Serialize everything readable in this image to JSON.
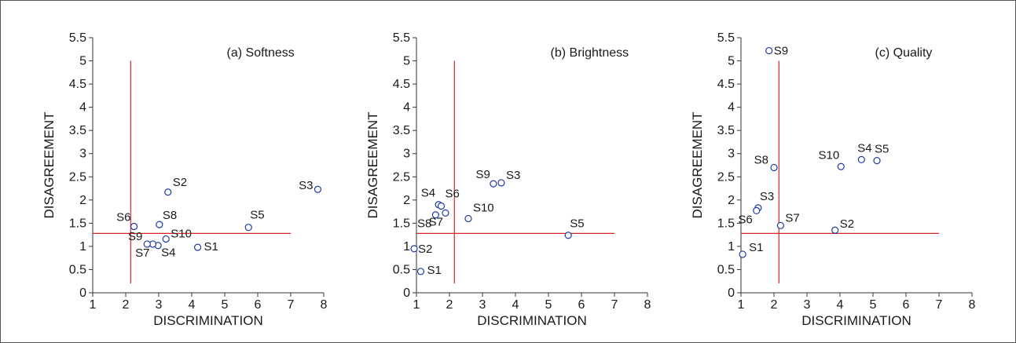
{
  "figure": {
    "frame": true
  },
  "colors": {
    "marker": "#1f3aa6",
    "reference_line": "#d62728",
    "axis": "#333333"
  },
  "chart_data": [
    {
      "type": "scatter",
      "title": "(a) Softness",
      "xlabel": "DISCRIMINATION",
      "ylabel": "DISAGREEMENT",
      "xlim": [
        1,
        8
      ],
      "ylim": [
        0,
        5.5
      ],
      "x_ticks": [
        "1",
        "2",
        "3",
        "4",
        "5",
        "6",
        "7",
        "8"
      ],
      "y_ticks": [
        "0",
        "0.5",
        "1",
        "1.5",
        "2",
        "2.5",
        "3",
        "3.5",
        "4",
        "4.5",
        "5",
        "5.5"
      ],
      "points": [
        {
          "label": "S1",
          "x": 4.18,
          "y": 0.98
        },
        {
          "label": "S2",
          "x": 3.28,
          "y": 2.17
        },
        {
          "label": "S3",
          "x": 7.82,
          "y": 2.23
        },
        {
          "label": "S4",
          "x": 2.98,
          "y": 1.02
        },
        {
          "label": "S5",
          "x": 5.72,
          "y": 1.41
        },
        {
          "label": "S6",
          "x": 2.25,
          "y": 1.43
        },
        {
          "label": "S7",
          "x": 2.82,
          "y": 1.05
        },
        {
          "label": "S8",
          "x": 3.02,
          "y": 1.47
        },
        {
          "label": "S9",
          "x": 2.65,
          "y": 1.05
        },
        {
          "label": "S10",
          "x": 3.22,
          "y": 1.16
        }
      ],
      "reference_lines": {
        "x": 2.15,
        "x_span": [
          0.2,
          5.0
        ],
        "y": 1.28,
        "y_span": [
          1.0,
          7.0
        ]
      },
      "grid": false
    },
    {
      "type": "scatter",
      "title": "(b) Brightness",
      "xlabel": "DISCRIMINATION",
      "ylabel": "DISAGREEMENT",
      "xlim": [
        1,
        8
      ],
      "ylim": [
        0,
        5.5
      ],
      "x_ticks": [
        "1",
        "2",
        "3",
        "4",
        "5",
        "6",
        "7",
        "8"
      ],
      "y_ticks": [
        "0",
        "0.5",
        "1",
        "1.5",
        "2",
        "2.5",
        "3",
        "3.5",
        "4",
        "4.5",
        "5",
        "5.5"
      ],
      "points": [
        {
          "label": "S1",
          "x": 1.13,
          "y": 0.46
        },
        {
          "label": "S2",
          "x": 0.93,
          "y": 0.95
        },
        {
          "label": "S3",
          "x": 3.57,
          "y": 2.37
        },
        {
          "label": "S4",
          "x": 1.67,
          "y": 1.9
        },
        {
          "label": "S5",
          "x": 5.6,
          "y": 1.24
        },
        {
          "label": "S6",
          "x": 1.75,
          "y": 1.87
        },
        {
          "label": "S7",
          "x": 1.88,
          "y": 1.72
        },
        {
          "label": "S8",
          "x": 1.58,
          "y": 1.68
        },
        {
          "label": "S9",
          "x": 3.33,
          "y": 2.35
        },
        {
          "label": "S10",
          "x": 2.57,
          "y": 1.6
        }
      ],
      "reference_lines": {
        "x": 2.15,
        "x_span": [
          0.2,
          5.0
        ],
        "y": 1.28,
        "y_span": [
          1.0,
          7.0
        ]
      },
      "grid": false
    },
    {
      "type": "scatter",
      "title": "(c) Quality",
      "xlabel": "DISCRIMINATION",
      "ylabel": "DISAGREEMENT",
      "xlim": [
        1,
        8
      ],
      "ylim": [
        0,
        5.5
      ],
      "x_ticks": [
        "1",
        "2",
        "3",
        "4",
        "5",
        "6",
        "7",
        "8"
      ],
      "y_ticks": [
        "0",
        "0.5",
        "1",
        "1.5",
        "2",
        "2.5",
        "3",
        "3.5",
        "4",
        "4.5",
        "5",
        "5.5"
      ],
      "points": [
        {
          "label": "S1",
          "x": 1.05,
          "y": 0.83
        },
        {
          "label": "S2",
          "x": 3.85,
          "y": 1.35
        },
        {
          "label": "S3",
          "x": 1.52,
          "y": 1.83
        },
        {
          "label": "S4",
          "x": 4.65,
          "y": 2.87
        },
        {
          "label": "S5",
          "x": 5.12,
          "y": 2.85
        },
        {
          "label": "S6",
          "x": 1.47,
          "y": 1.77
        },
        {
          "label": "S7",
          "x": 2.2,
          "y": 1.45
        },
        {
          "label": "S8",
          "x": 2.0,
          "y": 2.7
        },
        {
          "label": "S9",
          "x": 1.85,
          "y": 5.22
        },
        {
          "label": "S10",
          "x": 4.03,
          "y": 2.72
        }
      ],
      "reference_lines": {
        "x": 2.15,
        "x_span": [
          0.2,
          5.0
        ],
        "y": 1.28,
        "y_span": [
          1.0,
          7.0
        ]
      },
      "grid": false
    }
  ]
}
